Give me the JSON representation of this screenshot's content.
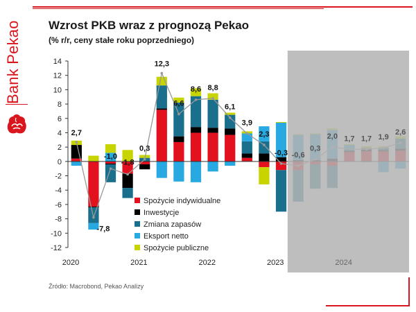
{
  "brand": {
    "name": "Bank Pekao",
    "logo_icon": "bison-icon",
    "accent": "#d9161e"
  },
  "title": "Wzrost PKB wraz z prognozą Pekao",
  "subtitle": "(% r/r, ceny stałe roku poprzedniego)",
  "source": "Źródło: Macrobond, Pekao Analizy",
  "chart_data": {
    "type": "bar",
    "stacked": true,
    "ylim": [
      -12,
      14
    ],
    "yticks": [
      "-12",
      "-10",
      "-8",
      "-6",
      "-4",
      "-2",
      "0",
      "2",
      "4",
      "6",
      "8",
      "10",
      "12",
      "14"
    ],
    "xlabels": [
      {
        "label": "2020",
        "at": 0
      },
      {
        "label": "2021",
        "at": 4
      },
      {
        "label": "2022",
        "at": 8
      },
      {
        "label": "2023",
        "at": 12
      },
      {
        "label": "2024",
        "at": 16
      }
    ],
    "categories": [
      "2020 Q1",
      "2020 Q2",
      "2020 Q3",
      "2020 Q4",
      "2021 Q1",
      "2021 Q2",
      "2021 Q3",
      "2021 Q4",
      "2022 Q1",
      "2022 Q2",
      "2022 Q3",
      "2022 Q4",
      "2023 Q1",
      "2023 Q2",
      "2023 Q3",
      "2023 Q4",
      "2024 Q1",
      "2024 Q2",
      "2024 Q3",
      "2024 Q4"
    ],
    "forecast_from_index": 13,
    "forecast_shade": "#b3b3b3",
    "series": [
      {
        "name": "Spożycie indywidualne",
        "color": "#e3101e",
        "values": [
          0.4,
          -6.3,
          -0.3,
          -1.7,
          -0.4,
          7.2,
          2.7,
          4.0,
          4.0,
          3.7,
          0.5,
          -0.8,
          -1.2,
          -1.2,
          -0.4,
          -0.6,
          1.3,
          1.4,
          1.4,
          1.5
        ]
      },
      {
        "name": "Inwestycje",
        "color": "#000000",
        "values": [
          1.9,
          -0.1,
          -0.1,
          -2.0,
          -0.7,
          0.2,
          0.8,
          0.8,
          0.7,
          0.9,
          0.6,
          1.1,
          0.6,
          0.2,
          0.2,
          0.4,
          0.2,
          0.4,
          0.2,
          0.3
        ]
      },
      {
        "name": "Zmiana zapasów",
        "color": "#1a6f8c",
        "values": [
          0.0,
          -2.2,
          -2.5,
          -1.4,
          0.5,
          3.2,
          4.7,
          4.3,
          3.9,
          1.9,
          1.7,
          1.7,
          -5.8,
          -4.4,
          -3.4,
          -3.1,
          0.2,
          0.1,
          0.3,
          1.4
        ]
      },
      {
        "name": "Eksport netto",
        "color": "#29a9e1",
        "values": [
          -0.6,
          -0.9,
          1.2,
          0.0,
          0.0,
          -2.3,
          -2.8,
          -2.9,
          -1.4,
          -0.6,
          1.1,
          2.1,
          4.8,
          3.5,
          3.6,
          4.0,
          0.6,
          -0.1,
          -1.5,
          -1.0
        ]
      },
      {
        "name": "Spożycie publiczne",
        "color": "#c8d400",
        "values": [
          0.6,
          0.8,
          1.2,
          1.6,
          0.4,
          1.2,
          0.7,
          1.1,
          0.9,
          0.3,
          0.3,
          -2.4,
          0.1,
          0.1,
          0.1,
          0.2,
          0.1,
          0.2,
          0.2,
          0.3
        ]
      }
    ],
    "gdp": {
      "name": "PKB",
      "color": "#999999",
      "values": [
        2.7,
        -7.8,
        -1.0,
        -1.8,
        0.3,
        12.3,
        6.6,
        8.6,
        8.8,
        6.1,
        3.9,
        2.3,
        -0.3,
        -0.6,
        0.3,
        2.0,
        1.7,
        1.7,
        1.9,
        2.6
      ],
      "labels": [
        "2,7",
        "-7,8",
        "-1,0",
        "-1,8",
        "0,3",
        "12,3",
        "6,6",
        "8,6",
        "8,8",
        "6,1",
        "3,9",
        "2,3",
        "-0,3",
        "-0,6",
        "0,3",
        "2,0",
        "1,7",
        "1,7",
        "1,9",
        "2,6"
      ]
    },
    "legend_position": "bottom-center",
    "grid": false
  }
}
